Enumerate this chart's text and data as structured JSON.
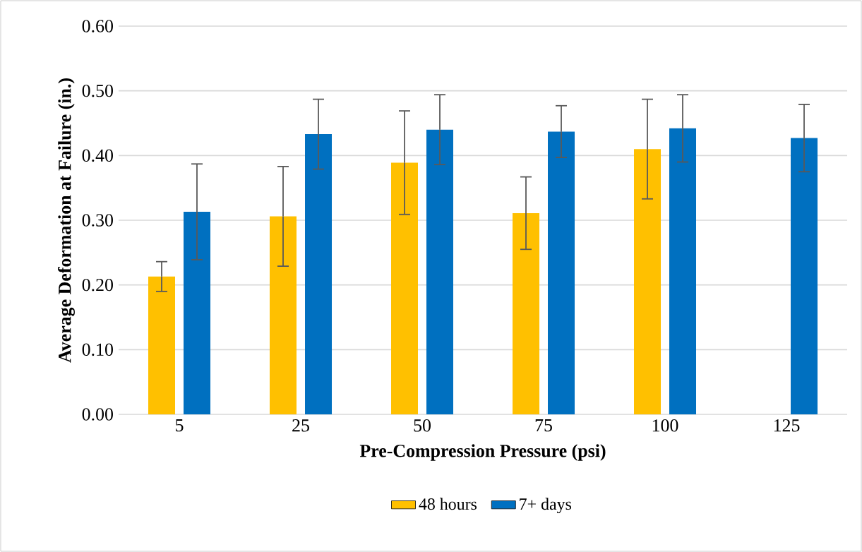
{
  "chart_data": {
    "type": "bar",
    "xlabel": "Pre-Compression Pressure (psi)",
    "ylabel": "Average Deformation at Failure (in.)",
    "categories": [
      "5",
      "25",
      "50",
      "75",
      "100",
      "125"
    ],
    "series": [
      {
        "name": "48 hours",
        "color": "#ffc000",
        "values": [
          0.213,
          0.306,
          0.389,
          0.311,
          0.41,
          null
        ],
        "errors": [
          0.023,
          0.077,
          0.08,
          0.056,
          0.077,
          null
        ]
      },
      {
        "name": "7+ days",
        "color": "#0070c0",
        "values": [
          0.313,
          0.433,
          0.44,
          0.437,
          0.442,
          0.427
        ],
        "errors": [
          0.074,
          0.054,
          0.054,
          0.04,
          0.052,
          0.052
        ]
      }
    ],
    "ylim": [
      0,
      0.6
    ],
    "yticks": [
      {
        "value": 0,
        "label": "0.00"
      },
      {
        "value": 0.1,
        "label": "0.10"
      },
      {
        "value": 0.2,
        "label": "0.20"
      },
      {
        "value": 0.3,
        "label": "0.30"
      },
      {
        "value": 0.4,
        "label": "0.40"
      },
      {
        "value": 0.5,
        "label": "0.50"
      },
      {
        "value": 0.6,
        "label": "0.60"
      }
    ],
    "grid": "y",
    "legend": "bottom"
  }
}
